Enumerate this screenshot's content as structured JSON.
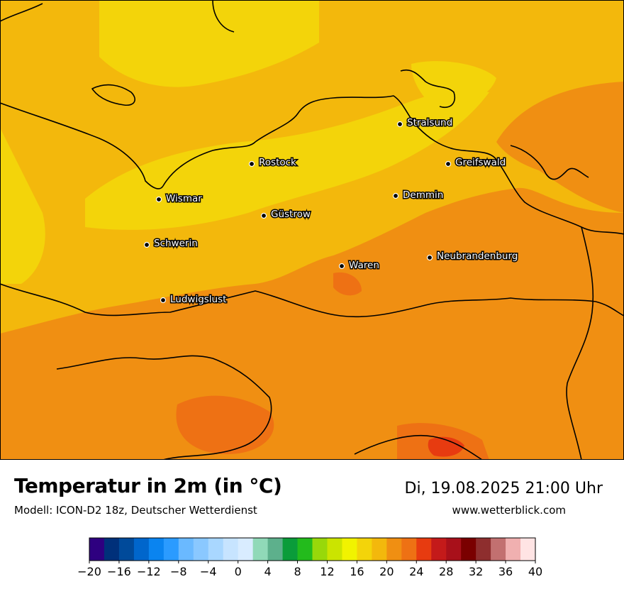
{
  "title": "Temperatur in 2m (in °C)",
  "model": "Modell: ICON-D2 18z, Deutscher Wetterdienst",
  "datetime": "Di, 19.08.2025 21:00 Uhr",
  "website": "www.wetterblick.com",
  "cities": [
    {
      "name": "Stralsund"
    },
    {
      "name": "Rostock"
    },
    {
      "name": "Greifswald"
    },
    {
      "name": "Wismar"
    },
    {
      "name": "Demmin"
    },
    {
      "name": "Güstrow"
    },
    {
      "name": "Schwerin"
    },
    {
      "name": "Neubrandenburg"
    },
    {
      "name": "Waren"
    },
    {
      "name": "Ludwigslust"
    }
  ],
  "legend": {
    "colors": [
      "#2e0080",
      "#00307a",
      "#004a9a",
      "#0066cc",
      "#0a84f0",
      "#2b9bff",
      "#6ab9ff",
      "#8ac8ff",
      "#a9d7ff",
      "#c7e4ff",
      "#d9ecff",
      "#90d9b8",
      "#5db08c",
      "#0a9c3a",
      "#23bb1c",
      "#98d80a",
      "#cbe400",
      "#f1f300",
      "#f3d40a",
      "#f3b80c",
      "#f08f12",
      "#ee7114",
      "#e73b10",
      "#c41a1a",
      "#a8101a",
      "#7a0000",
      "#8e2e2e",
      "#c27070",
      "#f0b0b0",
      "#ffe4e4"
    ],
    "tick_labels": [
      "−20",
      "−16",
      "−12",
      "−8",
      "−4",
      "0",
      "4",
      "8",
      "12",
      "16",
      "20",
      "24",
      "28",
      "32",
      "36",
      "40"
    ]
  }
}
